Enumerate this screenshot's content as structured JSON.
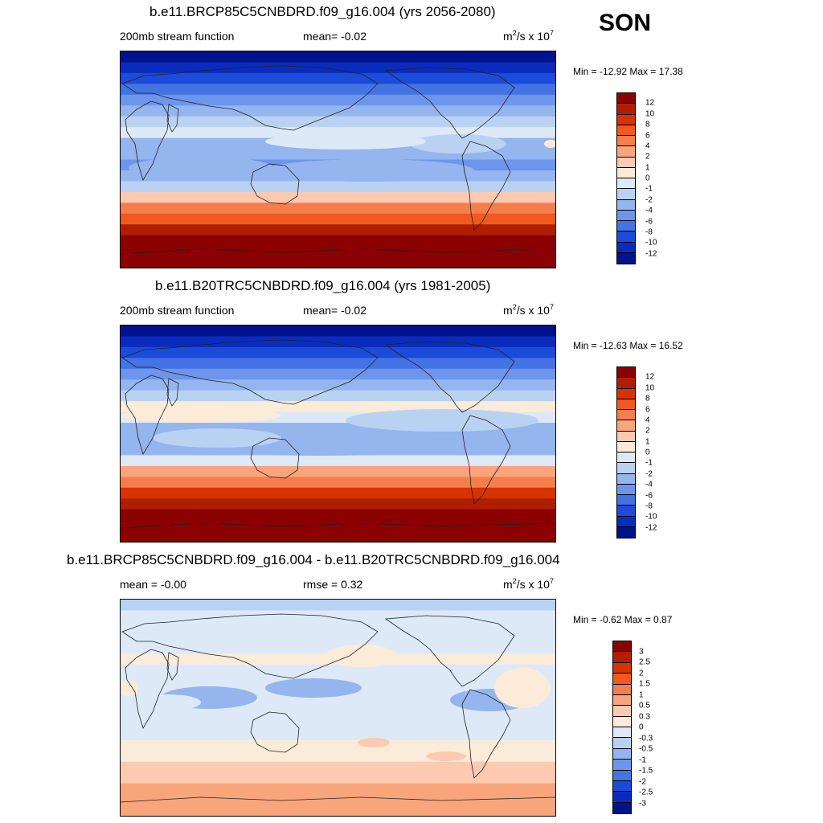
{
  "season": "SON",
  "panels": [
    {
      "title": "b.e11.BRCP85C5CNBDRD.f09_g16.004 (yrs 2056-2080)",
      "left_label": "200mb stream function",
      "center_label": "mean=  -0.02",
      "units_base": "m",
      "units_exp1": "2",
      "units_mid": "/s x 10",
      "units_exp2": "7",
      "minmax": "Min = -12.92 Max =  17.38",
      "colorbar_labels": [
        "12",
        "10",
        "8",
        "6",
        "4",
        "2",
        "1",
        "0",
        "-1",
        "-2",
        "-4",
        "-6",
        "-8",
        "-10",
        "-12"
      ]
    },
    {
      "title": "b.e11.B20TRC5CNBDRD.f09_g16.004 (yrs 1981-2005)",
      "left_label": "200mb stream function",
      "center_label": "mean=  -0.02",
      "units_base": "m",
      "units_exp1": "2",
      "units_mid": "/s x 10",
      "units_exp2": "7",
      "minmax": "Min = -12.63 Max =  16.52",
      "colorbar_labels": [
        "12",
        "10",
        "8",
        "6",
        "4",
        "2",
        "1",
        "0",
        "-1",
        "-2",
        "-4",
        "-6",
        "-8",
        "-10",
        "-12"
      ]
    },
    {
      "title": "b.e11.BRCP85C5CNBDRD.f09_g16.004 - b.e11.B20TRC5CNBDRD.f09_g16.004",
      "left_label": "mean =  -0.00",
      "center_label": "rmse =   0.32",
      "units_base": "m",
      "units_exp1": "2",
      "units_mid": "/s x 10",
      "units_exp2": "7",
      "minmax": "Min =  -0.62 Max =   0.87",
      "colorbar_labels": [
        "3",
        "2.5",
        "2",
        "1.5",
        "1",
        "0.5",
        "0.3",
        "0",
        "-0.3",
        "-0.5",
        "-1",
        "-1.5",
        "-2",
        "-2.5",
        "-3"
      ]
    }
  ],
  "colors": {
    "palette": [
      "#8b0000",
      "#b01e00",
      "#d53300",
      "#ef5a1e",
      "#f57e4d",
      "#f9a57c",
      "#fccab0",
      "#fdebd9",
      "#dde9f7",
      "#bad2f2",
      "#94b5ee",
      "#6e95ec",
      "#4473e4",
      "#1c4ad9",
      "#0a2cbc",
      "#00138d"
    ]
  },
  "chart_data": [
    {
      "type": "heatmap",
      "title": "b.e11.BRCP85C5CNBDRD.f09_g16.004 (yrs 2056-2080)",
      "variable": "200mb stream function",
      "units": "m2/s x 10^7",
      "mean": -0.02,
      "min": -12.92,
      "max": 17.38,
      "levels": [
        -12,
        -10,
        -8,
        -6,
        -4,
        -2,
        -1,
        0,
        1,
        2,
        4,
        6,
        8,
        10,
        12
      ],
      "zonal_band_values": [
        -13,
        -11,
        -9,
        -7,
        -5,
        -3,
        -1.5,
        -0.5,
        -2,
        -3,
        -4,
        -3,
        -1,
        2,
        5,
        8,
        11,
        14,
        17,
        17
      ]
    },
    {
      "type": "heatmap",
      "title": "b.e11.B20TRC5CNBDRD.f09_g16.004 (yrs 1981-2005)",
      "variable": "200mb stream function",
      "units": "m2/s x 10^7",
      "mean": -0.02,
      "min": -12.63,
      "max": 16.52,
      "levels": [
        -12,
        -10,
        -8,
        -6,
        -4,
        -2,
        -1,
        0,
        1,
        2,
        4,
        6,
        8,
        10,
        12
      ],
      "zonal_band_values": [
        -13,
        -11,
        -9,
        -7,
        -5,
        -3,
        -1.5,
        0.5,
        -0.5,
        -2,
        -3,
        -2,
        0,
        3,
        6,
        9,
        12,
        14,
        16,
        16
      ]
    },
    {
      "type": "heatmap",
      "title": "b.e11.BRCP85C5CNBDRD.f09_g16.004 - b.e11.B20TRC5CNBDRD.f09_g16.004",
      "units": "m2/s x 10^7",
      "mean": -0.0,
      "rmse": 0.32,
      "min": -0.62,
      "max": 0.87,
      "levels": [
        -3,
        -2.5,
        -2,
        -1.5,
        -1,
        -0.5,
        -0.3,
        0,
        0.3,
        0.5,
        1,
        1.5,
        2,
        2.5,
        3
      ],
      "zonal_band_values": [
        -0.35,
        -0.25,
        -0.15,
        -0.1,
        -0.1,
        0.1,
        -0.1,
        -0.2,
        -0.1,
        -0.1,
        -0.15,
        -0.2,
        -0.1,
        0.1,
        0.25,
        0.4,
        0.5,
        0.6,
        0.6,
        0.6
      ]
    }
  ]
}
